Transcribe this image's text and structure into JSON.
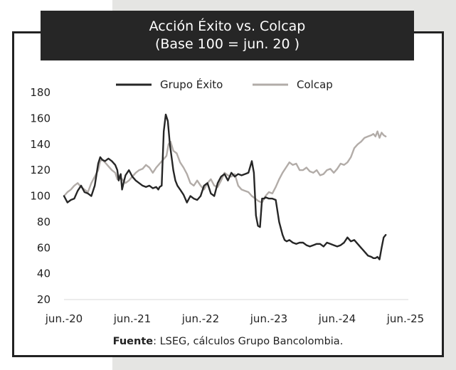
{
  "chart_data": {
    "type": "line",
    "title": "Acción Éxito vs. Colcap",
    "subtitle": "(Base 100 = jun. 20 )",
    "ylim": [
      20,
      180
    ],
    "yticks": [
      20,
      40,
      60,
      80,
      100,
      120,
      140,
      160,
      180
    ],
    "xlim": [
      2020.5,
      2025.5
    ],
    "xtick_labels": [
      "jun.-20",
      "jun.-21",
      "jun.-22",
      "jun.-23",
      "jun.-24",
      "jun.-25"
    ],
    "legend_position": "top-center",
    "source_label": "Fuente",
    "source_text": ": LSEG, cálculos Grupo Bancolombia.",
    "series": [
      {
        "name": "Grupo Éxito",
        "color": "#262626",
        "x": [
          2020.5,
          2020.55,
          2020.6,
          2020.65,
          2020.7,
          2020.75,
          2020.8,
          2020.85,
          2020.9,
          2020.95,
          2021.0,
          2021.03,
          2021.06,
          2021.1,
          2021.15,
          2021.2,
          2021.25,
          2021.28,
          2021.3,
          2021.33,
          2021.35,
          2021.38,
          2021.4,
          2021.45,
          2021.5,
          2021.55,
          2021.6,
          2021.65,
          2021.7,
          2021.75,
          2021.8,
          2021.85,
          2021.88,
          2021.9,
          2021.93,
          2021.96,
          2021.99,
          2022.02,
          2022.05,
          2022.08,
          2022.1,
          2022.13,
          2022.16,
          2022.2,
          2022.25,
          2022.3,
          2022.35,
          2022.4,
          2022.45,
          2022.5,
          2022.55,
          2022.6,
          2022.65,
          2022.7,
          2022.75,
          2022.8,
          2022.85,
          2022.9,
          2022.95,
          2023.0,
          2023.05,
          2023.1,
          2023.15,
          2023.2,
          2023.25,
          2023.28,
          2023.31,
          2023.34,
          2023.37,
          2023.4,
          2023.43,
          2023.45,
          2023.5,
          2023.55,
          2023.6,
          2023.65,
          2023.7,
          2023.73,
          2023.76,
          2023.8,
          2023.85,
          2023.9,
          2023.95,
          2024.0,
          2024.05,
          2024.1,
          2024.15,
          2024.2,
          2024.25,
          2024.3,
          2024.35,
          2024.4,
          2024.45,
          2024.5,
          2024.55,
          2024.6,
          2024.65,
          2024.7,
          2024.75,
          2024.8,
          2024.85,
          2024.9,
          2024.95,
          2025.0,
          2025.03,
          2025.06,
          2025.09,
          2025.12,
          2025.15,
          2025.18,
          2025.21
        ],
        "y": [
          100,
          95,
          97,
          98,
          104,
          108,
          103,
          102,
          100,
          108,
          125,
          130,
          128,
          127,
          129,
          127,
          124,
          120,
          112,
          117,
          105,
          112,
          116,
          120,
          115,
          112,
          110,
          108,
          107,
          108,
          106,
          107,
          105,
          107,
          108,
          150,
          163,
          158,
          140,
          128,
          120,
          112,
          108,
          105,
          101,
          95,
          100,
          98,
          97,
          100,
          108,
          110,
          102,
          100,
          110,
          115,
          117,
          112,
          118,
          115,
          117,
          116,
          117,
          118,
          127,
          118,
          85,
          77,
          76,
          98,
          98,
          99,
          98,
          98,
          97,
          80,
          70,
          66,
          65,
          66,
          64,
          63,
          64,
          64,
          62,
          61,
          62,
          63,
          63,
          61,
          64,
          63,
          62,
          61,
          62,
          64,
          68,
          65,
          66,
          63,
          60,
          57,
          54,
          53,
          52,
          52,
          53,
          51,
          60,
          68,
          70
        ]
      },
      {
        "name": "Colcap",
        "color": "#b2aca8",
        "x": [
          2020.5,
          2020.55,
          2020.6,
          2020.65,
          2020.7,
          2020.75,
          2020.8,
          2020.85,
          2020.9,
          2020.95,
          2021.0,
          2021.03,
          2021.06,
          2021.1,
          2021.15,
          2021.2,
          2021.25,
          2021.28,
          2021.3,
          2021.35,
          2021.4,
          2021.45,
          2021.5,
          2021.55,
          2021.6,
          2021.65,
          2021.7,
          2021.75,
          2021.8,
          2021.85,
          2021.9,
          2021.95,
          2022.0,
          2022.03,
          2022.06,
          2022.1,
          2022.15,
          2022.2,
          2022.25,
          2022.3,
          2022.35,
          2022.4,
          2022.45,
          2022.5,
          2022.55,
          2022.6,
          2022.65,
          2022.7,
          2022.75,
          2022.8,
          2022.85,
          2022.9,
          2022.95,
          2023.0,
          2023.05,
          2023.1,
          2023.15,
          2023.2,
          2023.25,
          2023.3,
          2023.35,
          2023.4,
          2023.45,
          2023.5,
          2023.55,
          2023.6,
          2023.65,
          2023.7,
          2023.75,
          2023.8,
          2023.85,
          2023.9,
          2023.95,
          2024.0,
          2024.05,
          2024.1,
          2024.15,
          2024.2,
          2024.25,
          2024.3,
          2024.35,
          2024.4,
          2024.45,
          2024.5,
          2024.55,
          2024.6,
          2024.65,
          2024.7,
          2024.75,
          2024.8,
          2024.85,
          2024.9,
          2024.95,
          2025.0,
          2025.03,
          2025.06,
          2025.09,
          2025.12,
          2025.15,
          2025.18,
          2025.21
        ],
        "y": [
          100,
          103,
          105,
          108,
          110,
          107,
          105,
          103,
          110,
          115,
          120,
          127,
          128,
          126,
          123,
          120,
          118,
          113,
          116,
          113,
          110,
          112,
          115,
          118,
          120,
          121,
          124,
          122,
          118,
          122,
          125,
          128,
          131,
          140,
          142,
          135,
          133,
          126,
          122,
          117,
          110,
          108,
          112,
          108,
          105,
          110,
          113,
          108,
          107,
          112,
          118,
          116,
          115,
          117,
          108,
          105,
          104,
          103,
          100,
          98,
          96,
          95,
          100,
          103,
          102,
          107,
          113,
          118,
          122,
          126,
          124,
          125,
          120,
          120,
          122,
          119,
          118,
          120,
          116,
          117,
          120,
          121,
          118,
          121,
          125,
          124,
          126,
          130,
          137,
          140,
          142,
          145,
          146,
          147,
          148,
          146,
          150,
          145,
          149,
          147,
          146
        ]
      }
    ]
  }
}
